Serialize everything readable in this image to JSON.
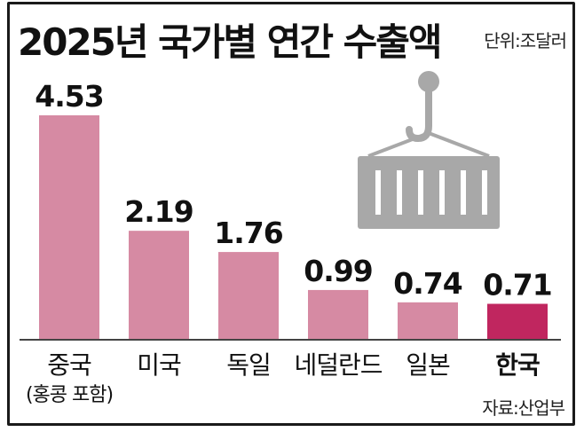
{
  "header": {
    "title": "2025년 국가별 연간 수출액",
    "unit": "단위:조달러"
  },
  "footer": {
    "source": "자료:산업부"
  },
  "chart_data": {
    "type": "bar",
    "title": "2025년 국가별 연간 수출액",
    "categories": [
      "중국",
      "미국",
      "독일",
      "네덜란드",
      "일본",
      "한국"
    ],
    "category_subtitles": [
      "(홍콩 포함)",
      "",
      "",
      "",
      "",
      ""
    ],
    "values": [
      4.53,
      2.19,
      1.76,
      0.99,
      0.74,
      0.71
    ],
    "value_labels": [
      "4.53",
      "2.19",
      "1.76",
      "0.99",
      "0.74",
      "0.71"
    ],
    "ylim": [
      0,
      4.53
    ],
    "grid": false,
    "highlight_index": 5,
    "colors": {
      "bar": "#d68aa3",
      "highlight": "#c0265f",
      "icon": "#a8a8a8"
    }
  },
  "icons": [
    "container-crane-icon"
  ]
}
